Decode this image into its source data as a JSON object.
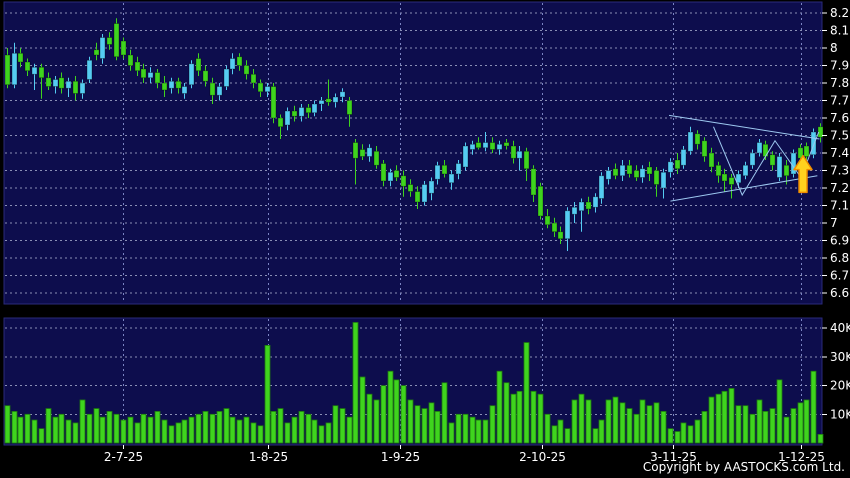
{
  "footer": {
    "copyright": "Copyright by AASTOCKS.com Ltd."
  },
  "colors": {
    "canvas_bg": "#000000",
    "panel_bg": "#0d0d4d",
    "panel_border": "#2a2a7a",
    "grid_h": "#8a8fb5",
    "grid_v": "#7b84c4",
    "axis_text": "#ffffff",
    "up": "#55ccf2",
    "down": "#3fd41e",
    "volume_bar": "#3fd41e",
    "volume_bar_edge": "#1f7a10",
    "trendline": "#9dc8f0",
    "arrow_fill": "#ffd21e",
    "arrow_stroke": "#f08c00"
  },
  "chart_data": {
    "type": "candlestick_with_volume",
    "title": "",
    "legend": [],
    "grid": "dashed",
    "price_axis": {
      "min": 6.6,
      "max": 8.2,
      "step": 0.1,
      "position": "right",
      "tick_labels": [
        "8.2",
        "8.1",
        "8",
        "7.9",
        "7.8",
        "7.7",
        "7.6",
        "7.5",
        "7.4",
        "7.3",
        "7.2",
        "7.1",
        "7",
        "6.9",
        "6.8",
        "6.7",
        "6.6"
      ]
    },
    "volume_axis": {
      "position": "right",
      "unit": "K",
      "tick_labels": [
        "40K",
        "30K",
        "20K",
        "10K"
      ],
      "tick_values": [
        40,
        30,
        20,
        10
      ]
    },
    "x_axis": {
      "tick_labels": [
        "2-7-25",
        "1-8-25",
        "1-9-25",
        "2-10-25",
        "3-11-25",
        "1-12-25"
      ],
      "tick_indices": [
        17.0,
        38.2,
        57.5,
        78.3,
        97.5,
        116.2
      ]
    },
    "candles": [
      [
        7.96,
        8.0,
        7.77,
        7.79,
        "d"
      ],
      [
        7.79,
        8.03,
        7.77,
        7.97,
        "u"
      ],
      [
        7.97,
        8.0,
        7.89,
        7.92,
        "d"
      ],
      [
        7.92,
        7.94,
        7.84,
        7.87,
        "d"
      ],
      [
        7.85,
        7.91,
        7.76,
        7.89,
        "u"
      ],
      [
        7.89,
        7.91,
        7.71,
        7.83,
        "d"
      ],
      [
        7.83,
        7.86,
        7.76,
        7.78,
        "d"
      ],
      [
        7.78,
        7.84,
        7.74,
        7.82,
        "u"
      ],
      [
        7.83,
        7.86,
        7.74,
        7.77,
        "d"
      ],
      [
        7.77,
        7.83,
        7.72,
        7.81,
        "u"
      ],
      [
        7.81,
        7.84,
        7.7,
        7.74,
        "d"
      ],
      [
        7.74,
        7.82,
        7.71,
        7.8,
        "u"
      ],
      [
        7.82,
        7.95,
        7.8,
        7.93,
        "u"
      ],
      [
        7.99,
        8.03,
        7.93,
        7.96,
        "d"
      ],
      [
        7.94,
        8.08,
        7.91,
        8.06,
        "u"
      ],
      [
        8.06,
        8.09,
        7.99,
        8.02,
        "d"
      ],
      [
        8.14,
        8.17,
        7.93,
        7.95,
        "d"
      ],
      [
        8.04,
        8.06,
        7.94,
        7.96,
        "d"
      ],
      [
        7.96,
        7.99,
        7.87,
        7.9,
        "d"
      ],
      [
        7.92,
        7.95,
        7.84,
        7.87,
        "d"
      ],
      [
        7.88,
        7.91,
        7.8,
        7.83,
        "d"
      ],
      [
        7.83,
        7.89,
        7.8,
        7.86,
        "u"
      ],
      [
        7.86,
        7.88,
        7.77,
        7.8,
        "d"
      ],
      [
        7.8,
        7.84,
        7.72,
        7.76,
        "d"
      ],
      [
        7.77,
        7.83,
        7.74,
        7.81,
        "u"
      ],
      [
        7.81,
        7.83,
        7.74,
        7.77,
        "d"
      ],
      [
        7.74,
        7.8,
        7.71,
        7.78,
        "u"
      ],
      [
        7.79,
        7.93,
        7.77,
        7.91,
        "u"
      ],
      [
        7.94,
        7.97,
        7.84,
        7.87,
        "d"
      ],
      [
        7.87,
        7.9,
        7.78,
        7.81,
        "d"
      ],
      [
        7.8,
        7.83,
        7.68,
        7.73,
        "d"
      ],
      [
        7.73,
        7.8,
        7.7,
        7.78,
        "u"
      ],
      [
        7.78,
        7.9,
        7.76,
        7.88,
        "u"
      ],
      [
        7.88,
        7.97,
        7.85,
        7.94,
        "u"
      ],
      [
        7.95,
        7.97,
        7.87,
        7.9,
        "d"
      ],
      [
        7.9,
        7.93,
        7.82,
        7.85,
        "d"
      ],
      [
        7.85,
        7.88,
        7.77,
        7.8,
        "d"
      ],
      [
        7.8,
        7.82,
        7.72,
        7.75,
        "d"
      ],
      [
        7.75,
        7.8,
        7.72,
        7.78,
        "u"
      ],
      [
        7.78,
        7.8,
        7.57,
        7.6,
        "d"
      ],
      [
        7.6,
        7.62,
        7.48,
        7.55,
        "d"
      ],
      [
        7.56,
        7.66,
        7.53,
        7.64,
        "u"
      ],
      [
        7.64,
        7.67,
        7.58,
        7.61,
        "d"
      ],
      [
        7.61,
        7.68,
        7.58,
        7.66,
        "u"
      ],
      [
        7.66,
        7.68,
        7.6,
        7.63,
        "d"
      ],
      [
        7.63,
        7.7,
        7.61,
        7.68,
        "u"
      ],
      [
        7.68,
        7.72,
        7.64,
        7.7,
        "u"
      ],
      [
        7.71,
        7.82,
        7.67,
        7.69,
        "d"
      ],
      [
        7.69,
        7.74,
        7.66,
        7.72,
        "u"
      ],
      [
        7.72,
        7.77,
        7.69,
        7.75,
        "u"
      ],
      [
        7.7,
        7.72,
        7.55,
        7.62,
        "d"
      ],
      [
        7.46,
        7.48,
        7.22,
        7.37,
        "d"
      ],
      [
        7.42,
        7.45,
        7.36,
        7.38,
        "d"
      ],
      [
        7.38,
        7.45,
        7.35,
        7.43,
        "u"
      ],
      [
        7.41,
        7.44,
        7.31,
        7.33,
        "d"
      ],
      [
        7.34,
        7.36,
        7.21,
        7.24,
        "d"
      ],
      [
        7.24,
        7.31,
        7.21,
        7.29,
        "u"
      ],
      [
        7.3,
        7.33,
        7.24,
        7.26,
        "d"
      ],
      [
        7.27,
        7.3,
        7.15,
        7.21,
        "d"
      ],
      [
        7.22,
        7.25,
        7.15,
        7.18,
        "d"
      ],
      [
        7.18,
        7.21,
        7.08,
        7.12,
        "d"
      ],
      [
        7.12,
        7.24,
        7.1,
        7.22,
        "u"
      ],
      [
        7.17,
        7.26,
        7.13,
        7.24,
        "u"
      ],
      [
        7.25,
        7.35,
        7.22,
        7.33,
        "u"
      ],
      [
        7.33,
        7.36,
        7.26,
        7.28,
        "d"
      ],
      [
        7.23,
        7.3,
        7.19,
        7.28,
        "u"
      ],
      [
        7.28,
        7.36,
        7.25,
        7.34,
        "u"
      ],
      [
        7.32,
        7.46,
        7.3,
        7.44,
        "u"
      ],
      [
        7.42,
        7.47,
        7.39,
        7.45,
        "u"
      ],
      [
        7.46,
        7.49,
        7.42,
        7.43,
        "d"
      ],
      [
        7.43,
        7.52,
        7.41,
        7.46,
        "u"
      ],
      [
        7.46,
        7.49,
        7.4,
        7.42,
        "d"
      ],
      [
        7.42,
        7.47,
        7.39,
        7.45,
        "u"
      ],
      [
        7.46,
        7.48,
        7.42,
        7.44,
        "d"
      ],
      [
        7.44,
        7.47,
        7.34,
        7.37,
        "d"
      ],
      [
        7.37,
        7.44,
        7.3,
        7.41,
        "u"
      ],
      [
        7.41,
        7.43,
        7.24,
        7.31,
        "d"
      ],
      [
        7.31,
        7.33,
        7.12,
        7.16,
        "d"
      ],
      [
        7.21,
        7.23,
        7.02,
        7.04,
        "d"
      ],
      [
        7.04,
        7.08,
        6.97,
        6.99,
        "d"
      ],
      [
        7.0,
        7.03,
        6.92,
        6.95,
        "d"
      ],
      [
        6.95,
        6.98,
        6.88,
        6.91,
        "d"
      ],
      [
        6.91,
        7.09,
        6.84,
        7.07,
        "u"
      ],
      [
        7.05,
        7.12,
        7.0,
        7.09,
        "u"
      ],
      [
        7.07,
        7.14,
        6.95,
        7.12,
        "u"
      ],
      [
        7.12,
        7.15,
        7.05,
        7.08,
        "d"
      ],
      [
        7.09,
        7.17,
        7.06,
        7.15,
        "u"
      ],
      [
        7.14,
        7.29,
        7.11,
        7.27,
        "u"
      ],
      [
        7.25,
        7.32,
        7.22,
        7.3,
        "u"
      ],
      [
        7.31,
        7.34,
        7.25,
        7.27,
        "d"
      ],
      [
        7.27,
        7.36,
        7.24,
        7.33,
        "u"
      ],
      [
        7.33,
        7.36,
        7.26,
        7.28,
        "d"
      ],
      [
        7.3,
        7.33,
        7.24,
        7.26,
        "d"
      ],
      [
        7.26,
        7.33,
        7.23,
        7.31,
        "u"
      ],
      [
        7.32,
        7.35,
        7.24,
        7.28,
        "d"
      ],
      [
        7.3,
        7.32,
        7.15,
        7.22,
        "d"
      ],
      [
        7.2,
        7.31,
        7.14,
        7.29,
        "u"
      ],
      [
        7.29,
        7.37,
        7.26,
        7.35,
        "u"
      ],
      [
        7.36,
        7.4,
        7.28,
        7.31,
        "d"
      ],
      [
        7.33,
        7.44,
        7.31,
        7.42,
        "u"
      ],
      [
        7.41,
        7.55,
        7.39,
        7.52,
        "u"
      ],
      [
        7.51,
        7.53,
        7.42,
        7.45,
        "d"
      ],
      [
        7.47,
        7.49,
        7.35,
        7.38,
        "d"
      ],
      [
        7.4,
        7.43,
        7.29,
        7.32,
        "d"
      ],
      [
        7.33,
        7.35,
        7.23,
        7.27,
        "d"
      ],
      [
        7.28,
        7.31,
        7.18,
        7.24,
        "d"
      ],
      [
        7.26,
        7.28,
        7.14,
        7.22,
        "d"
      ],
      [
        7.23,
        7.3,
        7.2,
        7.28,
        "u"
      ],
      [
        7.27,
        7.35,
        7.25,
        7.33,
        "u"
      ],
      [
        7.33,
        7.42,
        7.31,
        7.4,
        "u"
      ],
      [
        7.4,
        7.48,
        7.38,
        7.46,
        "u"
      ],
      [
        7.45,
        7.47,
        7.36,
        7.38,
        "d"
      ],
      [
        7.39,
        7.41,
        7.3,
        7.33,
        "d"
      ],
      [
        7.26,
        7.4,
        7.24,
        7.38,
        "u"
      ],
      [
        7.33,
        7.36,
        7.22,
        7.27,
        "d"
      ],
      [
        7.28,
        7.42,
        7.26,
        7.4,
        "u"
      ],
      [
        7.43,
        7.45,
        7.35,
        7.37,
        "d"
      ],
      [
        7.44,
        7.46,
        7.36,
        7.38,
        "d"
      ],
      [
        7.39,
        7.54,
        7.37,
        7.52,
        "u"
      ],
      [
        7.55,
        7.57,
        7.46,
        7.49,
        "d"
      ]
    ],
    "volumes_k": [
      13,
      11,
      9,
      10,
      8,
      5,
      12,
      9,
      10,
      8,
      7,
      15,
      10,
      12,
      9,
      11,
      10,
      8,
      9,
      7,
      10,
      9,
      11,
      8,
      6,
      7,
      8,
      9,
      10,
      11,
      10,
      11,
      12,
      9,
      8,
      9,
      7,
      6,
      34,
      11,
      12,
      7,
      9,
      11,
      10,
      8,
      6,
      7,
      13,
      12,
      9,
      42,
      23,
      17,
      15,
      20,
      25,
      22,
      20,
      15,
      13,
      12,
      14,
      11,
      21,
      7,
      10,
      10,
      9,
      8,
      8,
      13,
      25,
      21,
      17,
      18,
      35,
      18,
      17,
      10,
      6,
      8,
      5,
      15,
      17,
      15,
      5,
      8,
      15,
      16,
      14,
      12,
      10,
      15,
      13,
      14,
      11,
      5,
      4,
      7,
      6,
      8,
      11,
      16,
      17,
      18,
      19,
      13,
      13,
      10,
      15,
      11,
      12,
      22,
      9,
      12,
      14,
      15,
      25,
      3
    ],
    "annotations": {
      "upper_trendline": {
        "from": {
          "index": 96.9,
          "price": 7.615
        },
        "to": {
          "index": 118.9,
          "price": 7.48
        }
      },
      "lower_trendline": {
        "from": {
          "index": 97.1,
          "price": 7.125
        },
        "to": {
          "index": 118.6,
          "price": 7.27
        }
      },
      "zigzag": [
        {
          "index": 103.4,
          "price": 7.55
        },
        {
          "index": 107.6,
          "price": 7.16
        },
        {
          "index": 112.4,
          "price": 7.47
        },
        {
          "index": 116.2,
          "price": 7.26
        },
        {
          "index": 118.8,
          "price": 7.52
        }
      ],
      "arrow": {
        "index": 116.5,
        "price_tip": 7.385,
        "price_base": 7.175
      }
    }
  }
}
